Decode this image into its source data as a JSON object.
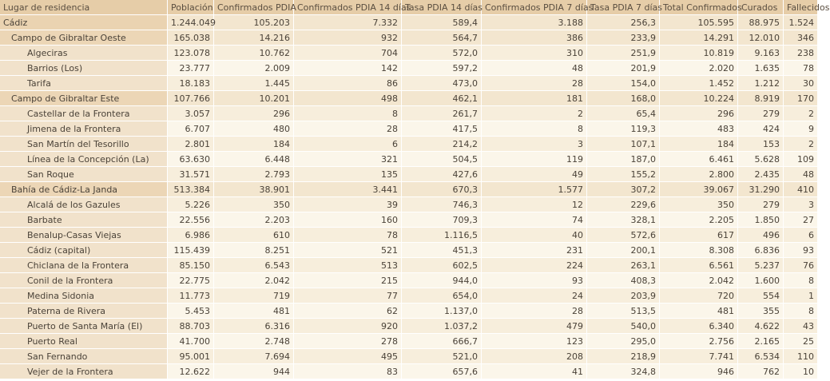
{
  "table": {
    "headers": [
      "Lugar de residencia",
      "Población",
      "Confirmados PDIA",
      "Confirmados PDIA 14 días",
      "Tasa PDIA 14 días",
      "Confirmados PDIA 7 días",
      "Tasa PDIA 7 días",
      "Total Confirmados",
      "Curados",
      "Fallecidos"
    ],
    "rows": [
      {
        "level": 0,
        "cells": [
          "Cádiz",
          "1.244.049",
          "105.203",
          "7.332",
          "589,4",
          "3.188",
          "256,3",
          "105.595",
          "88.975",
          "1.524"
        ]
      },
      {
        "level": 1,
        "cells": [
          "Campo de Gibraltar Oeste",
          "165.038",
          "14.216",
          "932",
          "564,7",
          "386",
          "233,9",
          "14.291",
          "12.010",
          "346"
        ]
      },
      {
        "level": 2,
        "cells": [
          "Algeciras",
          "123.078",
          "10.762",
          "704",
          "572,0",
          "310",
          "251,9",
          "10.819",
          "9.163",
          "238"
        ]
      },
      {
        "level": 2,
        "cells": [
          "Barrios (Los)",
          "23.777",
          "2.009",
          "142",
          "597,2",
          "48",
          "201,9",
          "2.020",
          "1.635",
          "78"
        ]
      },
      {
        "level": 2,
        "cells": [
          "Tarifa",
          "18.183",
          "1.445",
          "86",
          "473,0",
          "28",
          "154,0",
          "1.452",
          "1.212",
          "30"
        ]
      },
      {
        "level": 1,
        "cells": [
          "Campo de Gibraltar Este",
          "107.766",
          "10.201",
          "498",
          "462,1",
          "181",
          "168,0",
          "10.224",
          "8.919",
          "170"
        ]
      },
      {
        "level": 2,
        "cells": [
          "Castellar de la Frontera",
          "3.057",
          "296",
          "8",
          "261,7",
          "2",
          "65,4",
          "296",
          "279",
          "2"
        ]
      },
      {
        "level": 2,
        "cells": [
          "Jimena de la Frontera",
          "6.707",
          "480",
          "28",
          "417,5",
          "8",
          "119,3",
          "483",
          "424",
          "9"
        ]
      },
      {
        "level": 2,
        "cells": [
          "San Martín del Tesorillo",
          "2.801",
          "184",
          "6",
          "214,2",
          "3",
          "107,1",
          "184",
          "153",
          "2"
        ]
      },
      {
        "level": 2,
        "cells": [
          "Línea de la Concepción (La)",
          "63.630",
          "6.448",
          "321",
          "504,5",
          "119",
          "187,0",
          "6.461",
          "5.628",
          "109"
        ]
      },
      {
        "level": 2,
        "cells": [
          "San Roque",
          "31.571",
          "2.793",
          "135",
          "427,6",
          "49",
          "155,2",
          "2.800",
          "2.435",
          "48"
        ]
      },
      {
        "level": 1,
        "cells": [
          "Bahía de Cádiz-La Janda",
          "513.384",
          "38.901",
          "3.441",
          "670,3",
          "1.577",
          "307,2",
          "39.067",
          "31.290",
          "410"
        ]
      },
      {
        "level": 2,
        "cells": [
          "Alcalá de los Gazules",
          "5.226",
          "350",
          "39",
          "746,3",
          "12",
          "229,6",
          "350",
          "279",
          "3"
        ]
      },
      {
        "level": 2,
        "cells": [
          "Barbate",
          "22.556",
          "2.203",
          "160",
          "709,3",
          "74",
          "328,1",
          "2.205",
          "1.850",
          "27"
        ]
      },
      {
        "level": 2,
        "cells": [
          "Benalup-Casas Viejas",
          "6.986",
          "610",
          "78",
          "1.116,5",
          "40",
          "572,6",
          "617",
          "496",
          "6"
        ]
      },
      {
        "level": 2,
        "cells": [
          "Cádiz (capital)",
          "115.439",
          "8.251",
          "521",
          "451,3",
          "231",
          "200,1",
          "8.308",
          "6.836",
          "93"
        ]
      },
      {
        "level": 2,
        "cells": [
          "Chiclana de la Frontera",
          "85.150",
          "6.543",
          "513",
          "602,5",
          "224",
          "263,1",
          "6.561",
          "5.237",
          "76"
        ]
      },
      {
        "level": 2,
        "cells": [
          "Conil de la Frontera",
          "22.775",
          "2.042",
          "215",
          "944,0",
          "93",
          "408,3",
          "2.042",
          "1.600",
          "8"
        ]
      },
      {
        "level": 2,
        "cells": [
          "Medina Sidonia",
          "11.773",
          "719",
          "77",
          "654,0",
          "24",
          "203,9",
          "720",
          "554",
          "1"
        ]
      },
      {
        "level": 2,
        "cells": [
          "Paterna de Rivera",
          "5.453",
          "481",
          "62",
          "1.137,0",
          "28",
          "513,5",
          "481",
          "355",
          "8"
        ]
      },
      {
        "level": 2,
        "cells": [
          "Puerto de Santa María (El)",
          "88.703",
          "6.316",
          "920",
          "1.037,2",
          "479",
          "540,0",
          "6.340",
          "4.622",
          "43"
        ]
      },
      {
        "level": 2,
        "cells": [
          "Puerto Real",
          "41.700",
          "2.748",
          "278",
          "666,7",
          "123",
          "295,0",
          "2.756",
          "2.165",
          "25"
        ]
      },
      {
        "level": 2,
        "cells": [
          "San Fernando",
          "95.001",
          "7.694",
          "495",
          "521,0",
          "208",
          "218,9",
          "7.741",
          "6.534",
          "110"
        ]
      },
      {
        "level": 2,
        "cells": [
          "Vejer de la Frontera",
          "12.622",
          "944",
          "83",
          "657,6",
          "41",
          "324,8",
          "946",
          "762",
          "10"
        ]
      }
    ]
  }
}
